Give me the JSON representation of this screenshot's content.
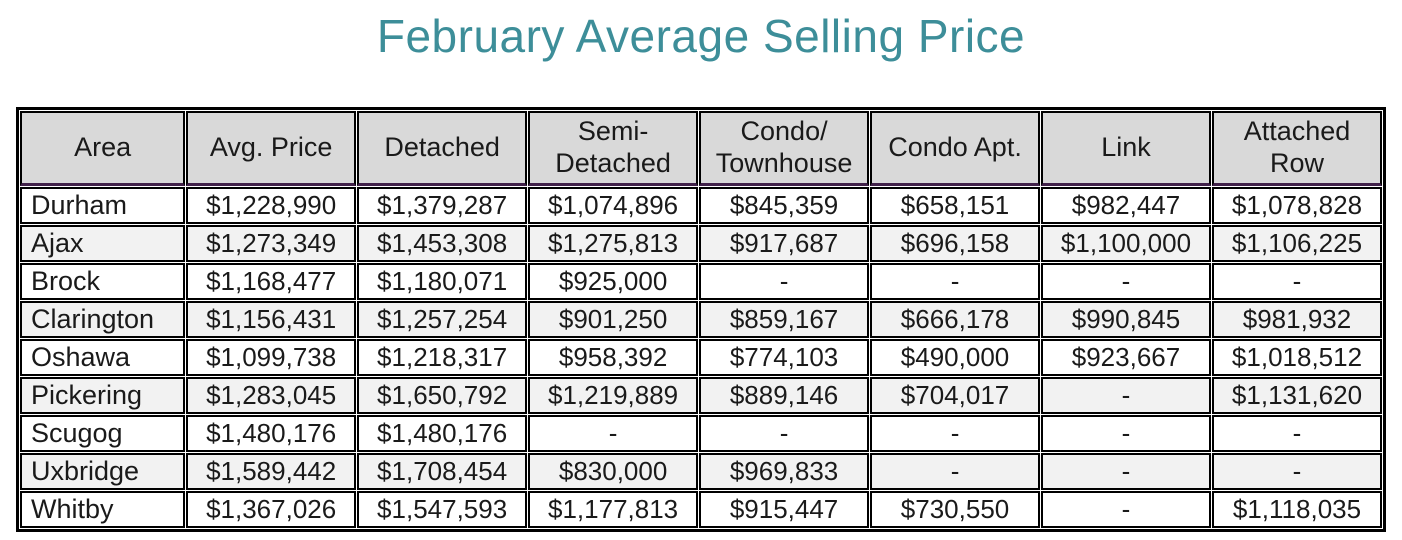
{
  "title": "February Average Selling Price",
  "colors": {
    "title_teal": "#3D8E99",
    "header_bg": "#D9D9D9",
    "alt_row_bg": "#F2F2F2",
    "grid_border": "#000000",
    "header_underline_purple": "#41214A"
  },
  "chart_data": {
    "type": "table",
    "title": "February Average Selling Price",
    "columns": [
      "Area",
      "Avg. Price",
      "Detached",
      "Semi-\nDetached",
      "Condo/\nTownhouse",
      "Condo Apt.",
      "Link",
      "Attached\nRow"
    ],
    "rows": [
      [
        "Durham",
        "$1,228,990",
        "$1,379,287",
        "$1,074,896",
        "$845,359",
        "$658,151",
        "$982,447",
        "$1,078,828"
      ],
      [
        "Ajax",
        "$1,273,349",
        "$1,453,308",
        "$1,275,813",
        "$917,687",
        "$696,158",
        "$1,100,000",
        "$1,106,225"
      ],
      [
        "Brock",
        "$1,168,477",
        "$1,180,071",
        "$925,000",
        "-",
        "-",
        "-",
        "-"
      ],
      [
        "Clarington",
        "$1,156,431",
        "$1,257,254",
        "$901,250",
        "$859,167",
        "$666,178",
        "$990,845",
        "$981,932"
      ],
      [
        "Oshawa",
        "$1,099,738",
        "$1,218,317",
        "$958,392",
        "$774,103",
        "$490,000",
        "$923,667",
        "$1,018,512"
      ],
      [
        "Pickering",
        "$1,283,045",
        "$1,650,792",
        "$1,219,889",
        "$889,146",
        "$704,017",
        "-",
        "$1,131,620"
      ],
      [
        "Scugog",
        "$1,480,176",
        "$1,480,176",
        "-",
        "-",
        "-",
        "-",
        "-"
      ],
      [
        "Uxbridge",
        "$1,589,442",
        "$1,708,454",
        "$830,000",
        "$969,833",
        "-",
        "-",
        "-"
      ],
      [
        "Whitby",
        "$1,367,026",
        "$1,547,593",
        "$1,177,813",
        "$915,447",
        "$730,550",
        "-",
        "$1,118,035"
      ]
    ]
  }
}
